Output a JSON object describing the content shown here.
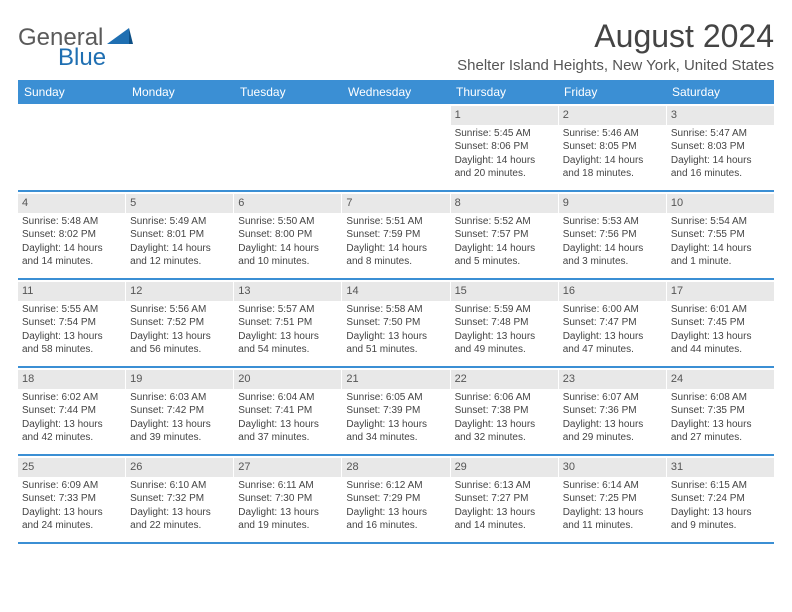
{
  "logo": {
    "text1": "General",
    "text2": "Blue"
  },
  "header": {
    "month_title": "August 2024",
    "location": "Shelter Island Heights, New York, United States"
  },
  "colors": {
    "header_bg": "#3b8fd4",
    "header_text": "#ffffff",
    "daynum_bg": "#e8e8e8",
    "border": "#3b8fd4",
    "text": "#444444"
  },
  "day_labels": [
    "Sunday",
    "Monday",
    "Tuesday",
    "Wednesday",
    "Thursday",
    "Friday",
    "Saturday"
  ],
  "weeks": [
    [
      {
        "num": "",
        "lines": []
      },
      {
        "num": "",
        "lines": []
      },
      {
        "num": "",
        "lines": []
      },
      {
        "num": "",
        "lines": []
      },
      {
        "num": "1",
        "lines": [
          "Sunrise: 5:45 AM",
          "Sunset: 8:06 PM",
          "Daylight: 14 hours",
          "and 20 minutes."
        ]
      },
      {
        "num": "2",
        "lines": [
          "Sunrise: 5:46 AM",
          "Sunset: 8:05 PM",
          "Daylight: 14 hours",
          "and 18 minutes."
        ]
      },
      {
        "num": "3",
        "lines": [
          "Sunrise: 5:47 AM",
          "Sunset: 8:03 PM",
          "Daylight: 14 hours",
          "and 16 minutes."
        ]
      }
    ],
    [
      {
        "num": "4",
        "lines": [
          "Sunrise: 5:48 AM",
          "Sunset: 8:02 PM",
          "Daylight: 14 hours",
          "and 14 minutes."
        ]
      },
      {
        "num": "5",
        "lines": [
          "Sunrise: 5:49 AM",
          "Sunset: 8:01 PM",
          "Daylight: 14 hours",
          "and 12 minutes."
        ]
      },
      {
        "num": "6",
        "lines": [
          "Sunrise: 5:50 AM",
          "Sunset: 8:00 PM",
          "Daylight: 14 hours",
          "and 10 minutes."
        ]
      },
      {
        "num": "7",
        "lines": [
          "Sunrise: 5:51 AM",
          "Sunset: 7:59 PM",
          "Daylight: 14 hours",
          "and 8 minutes."
        ]
      },
      {
        "num": "8",
        "lines": [
          "Sunrise: 5:52 AM",
          "Sunset: 7:57 PM",
          "Daylight: 14 hours",
          "and 5 minutes."
        ]
      },
      {
        "num": "9",
        "lines": [
          "Sunrise: 5:53 AM",
          "Sunset: 7:56 PM",
          "Daylight: 14 hours",
          "and 3 minutes."
        ]
      },
      {
        "num": "10",
        "lines": [
          "Sunrise: 5:54 AM",
          "Sunset: 7:55 PM",
          "Daylight: 14 hours",
          "and 1 minute."
        ]
      }
    ],
    [
      {
        "num": "11",
        "lines": [
          "Sunrise: 5:55 AM",
          "Sunset: 7:54 PM",
          "Daylight: 13 hours",
          "and 58 minutes."
        ]
      },
      {
        "num": "12",
        "lines": [
          "Sunrise: 5:56 AM",
          "Sunset: 7:52 PM",
          "Daylight: 13 hours",
          "and 56 minutes."
        ]
      },
      {
        "num": "13",
        "lines": [
          "Sunrise: 5:57 AM",
          "Sunset: 7:51 PM",
          "Daylight: 13 hours",
          "and 54 minutes."
        ]
      },
      {
        "num": "14",
        "lines": [
          "Sunrise: 5:58 AM",
          "Sunset: 7:50 PM",
          "Daylight: 13 hours",
          "and 51 minutes."
        ]
      },
      {
        "num": "15",
        "lines": [
          "Sunrise: 5:59 AM",
          "Sunset: 7:48 PM",
          "Daylight: 13 hours",
          "and 49 minutes."
        ]
      },
      {
        "num": "16",
        "lines": [
          "Sunrise: 6:00 AM",
          "Sunset: 7:47 PM",
          "Daylight: 13 hours",
          "and 47 minutes."
        ]
      },
      {
        "num": "17",
        "lines": [
          "Sunrise: 6:01 AM",
          "Sunset: 7:45 PM",
          "Daylight: 13 hours",
          "and 44 minutes."
        ]
      }
    ],
    [
      {
        "num": "18",
        "lines": [
          "Sunrise: 6:02 AM",
          "Sunset: 7:44 PM",
          "Daylight: 13 hours",
          "and 42 minutes."
        ]
      },
      {
        "num": "19",
        "lines": [
          "Sunrise: 6:03 AM",
          "Sunset: 7:42 PM",
          "Daylight: 13 hours",
          "and 39 minutes."
        ]
      },
      {
        "num": "20",
        "lines": [
          "Sunrise: 6:04 AM",
          "Sunset: 7:41 PM",
          "Daylight: 13 hours",
          "and 37 minutes."
        ]
      },
      {
        "num": "21",
        "lines": [
          "Sunrise: 6:05 AM",
          "Sunset: 7:39 PM",
          "Daylight: 13 hours",
          "and 34 minutes."
        ]
      },
      {
        "num": "22",
        "lines": [
          "Sunrise: 6:06 AM",
          "Sunset: 7:38 PM",
          "Daylight: 13 hours",
          "and 32 minutes."
        ]
      },
      {
        "num": "23",
        "lines": [
          "Sunrise: 6:07 AM",
          "Sunset: 7:36 PM",
          "Daylight: 13 hours",
          "and 29 minutes."
        ]
      },
      {
        "num": "24",
        "lines": [
          "Sunrise: 6:08 AM",
          "Sunset: 7:35 PM",
          "Daylight: 13 hours",
          "and 27 minutes."
        ]
      }
    ],
    [
      {
        "num": "25",
        "lines": [
          "Sunrise: 6:09 AM",
          "Sunset: 7:33 PM",
          "Daylight: 13 hours",
          "and 24 minutes."
        ]
      },
      {
        "num": "26",
        "lines": [
          "Sunrise: 6:10 AM",
          "Sunset: 7:32 PM",
          "Daylight: 13 hours",
          "and 22 minutes."
        ]
      },
      {
        "num": "27",
        "lines": [
          "Sunrise: 6:11 AM",
          "Sunset: 7:30 PM",
          "Daylight: 13 hours",
          "and 19 minutes."
        ]
      },
      {
        "num": "28",
        "lines": [
          "Sunrise: 6:12 AM",
          "Sunset: 7:29 PM",
          "Daylight: 13 hours",
          "and 16 minutes."
        ]
      },
      {
        "num": "29",
        "lines": [
          "Sunrise: 6:13 AM",
          "Sunset: 7:27 PM",
          "Daylight: 13 hours",
          "and 14 minutes."
        ]
      },
      {
        "num": "30",
        "lines": [
          "Sunrise: 6:14 AM",
          "Sunset: 7:25 PM",
          "Daylight: 13 hours",
          "and 11 minutes."
        ]
      },
      {
        "num": "31",
        "lines": [
          "Sunrise: 6:15 AM",
          "Sunset: 7:24 PM",
          "Daylight: 13 hours",
          "and 9 minutes."
        ]
      }
    ]
  ]
}
